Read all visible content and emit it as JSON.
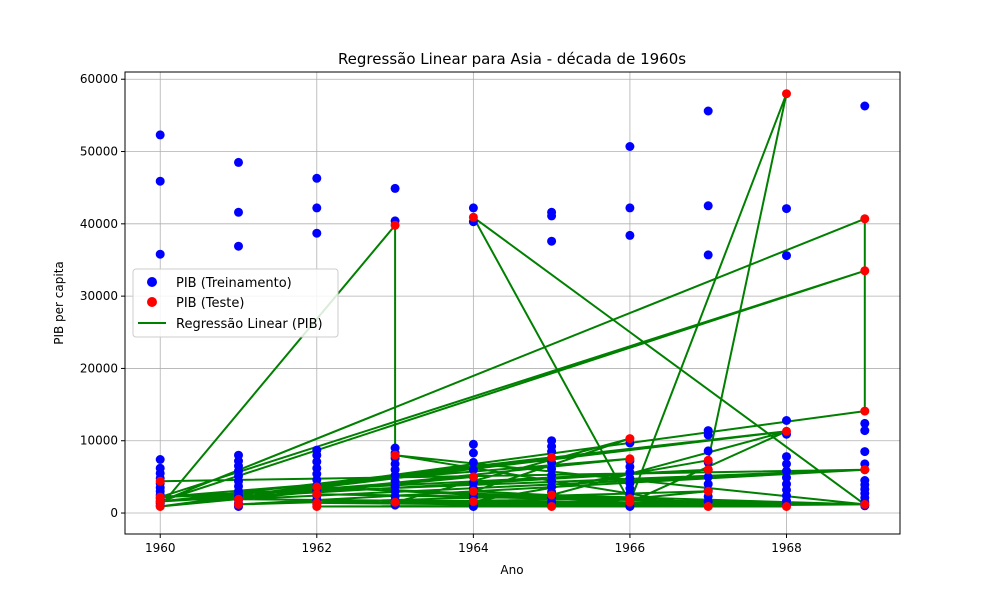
{
  "chart_data": {
    "type": "scatter",
    "title": "Regressão Linear para Asia - década de 1960s",
    "xlabel": "Ano",
    "ylabel": "PIB per capita",
    "xlim": [
      1959.55,
      1969.45
    ],
    "ylim": [
      -2900,
      61000
    ],
    "xticks": [
      1960,
      1962,
      1964,
      1966,
      1968
    ],
    "yticks": [
      0,
      10000,
      20000,
      30000,
      40000,
      50000,
      60000
    ],
    "grid": true,
    "legend_position": "center-left",
    "colors": {
      "train": "#0000ff",
      "test": "#ff0000",
      "regression": "#008000"
    },
    "series": [
      {
        "name": "PIB (Treinamento)",
        "kind": "scatter",
        "color": "#0000ff",
        "points": [
          [
            1960,
            52300
          ],
          [
            1960,
            45900
          ],
          [
            1960,
            35800
          ],
          [
            1960,
            7400
          ],
          [
            1960,
            6200
          ],
          [
            1960,
            5500
          ],
          [
            1960,
            4800
          ],
          [
            1960,
            4100
          ],
          [
            1960,
            3500
          ],
          [
            1960,
            3000
          ],
          [
            1960,
            2500
          ],
          [
            1960,
            2000
          ],
          [
            1960,
            1600
          ],
          [
            1960,
            1300
          ],
          [
            1960,
            1000
          ],
          [
            1961,
            48500
          ],
          [
            1961,
            41600
          ],
          [
            1961,
            36900
          ],
          [
            1961,
            8000
          ],
          [
            1961,
            7200
          ],
          [
            1961,
            6500
          ],
          [
            1961,
            5800
          ],
          [
            1961,
            5100
          ],
          [
            1961,
            4400
          ],
          [
            1961,
            3700
          ],
          [
            1961,
            3000
          ],
          [
            1961,
            2400
          ],
          [
            1961,
            1800
          ],
          [
            1961,
            1300
          ],
          [
            1961,
            900
          ],
          [
            1962,
            46300
          ],
          [
            1962,
            42200
          ],
          [
            1962,
            38700
          ],
          [
            1962,
            8700
          ],
          [
            1962,
            8000
          ],
          [
            1962,
            7100
          ],
          [
            1962,
            6200
          ],
          [
            1962,
            5400
          ],
          [
            1962,
            4600
          ],
          [
            1962,
            3800
          ],
          [
            1962,
            3100
          ],
          [
            1962,
            2400
          ],
          [
            1962,
            1800
          ],
          [
            1962,
            1200
          ],
          [
            1963,
            44900
          ],
          [
            1963,
            40400
          ],
          [
            1963,
            9000
          ],
          [
            1963,
            8300
          ],
          [
            1963,
            7600
          ],
          [
            1963,
            6800
          ],
          [
            1963,
            6000
          ],
          [
            1963,
            5200
          ],
          [
            1963,
            4400
          ],
          [
            1963,
            3700
          ],
          [
            1963,
            3000
          ],
          [
            1963,
            2300
          ],
          [
            1963,
            1700
          ],
          [
            1963,
            1100
          ],
          [
            1964,
            42200
          ],
          [
            1964,
            40300
          ],
          [
            1964,
            9500
          ],
          [
            1964,
            8300
          ],
          [
            1964,
            7000
          ],
          [
            1964,
            6000
          ],
          [
            1964,
            5000
          ],
          [
            1964,
            4200
          ],
          [
            1964,
            3400
          ],
          [
            1964,
            2700
          ],
          [
            1964,
            2100
          ],
          [
            1964,
            1500
          ],
          [
            1964,
            900
          ],
          [
            1965,
            41600
          ],
          [
            1965,
            41100
          ],
          [
            1965,
            37600
          ],
          [
            1965,
            10000
          ],
          [
            1965,
            9200
          ],
          [
            1965,
            8500
          ],
          [
            1965,
            7000
          ],
          [
            1965,
            6100
          ],
          [
            1965,
            5200
          ],
          [
            1965,
            4400
          ],
          [
            1965,
            3600
          ],
          [
            1965,
            2900
          ],
          [
            1965,
            2200
          ],
          [
            1965,
            1500
          ],
          [
            1965,
            1000
          ],
          [
            1966,
            50700
          ],
          [
            1966,
            42200
          ],
          [
            1966,
            38400
          ],
          [
            1966,
            9700
          ],
          [
            1966,
            7200
          ],
          [
            1966,
            6400
          ],
          [
            1966,
            5600
          ],
          [
            1966,
            4800
          ],
          [
            1966,
            4100
          ],
          [
            1966,
            3400
          ],
          [
            1966,
            2700
          ],
          [
            1966,
            2000
          ],
          [
            1966,
            1400
          ],
          [
            1966,
            900
          ],
          [
            1967,
            55600
          ],
          [
            1967,
            42500
          ],
          [
            1967,
            35700
          ],
          [
            1967,
            11400
          ],
          [
            1967,
            10800
          ],
          [
            1967,
            8600
          ],
          [
            1967,
            7000
          ],
          [
            1967,
            6000
          ],
          [
            1967,
            5000
          ],
          [
            1967,
            4000
          ],
          [
            1967,
            3100
          ],
          [
            1967,
            2300
          ],
          [
            1967,
            1600
          ],
          [
            1968,
            42100
          ],
          [
            1968,
            35600
          ],
          [
            1968,
            12800
          ],
          [
            1968,
            10900
          ],
          [
            1968,
            7800
          ],
          [
            1968,
            6800
          ],
          [
            1968,
            5800
          ],
          [
            1968,
            4900
          ],
          [
            1968,
            4000
          ],
          [
            1968,
            3200
          ],
          [
            1968,
            2400
          ],
          [
            1968,
            1700
          ],
          [
            1968,
            1100
          ],
          [
            1969,
            56300
          ],
          [
            1969,
            12400
          ],
          [
            1969,
            11400
          ],
          [
            1969,
            8500
          ],
          [
            1969,
            6800
          ],
          [
            1969,
            6000
          ],
          [
            1969,
            4500
          ],
          [
            1969,
            3900
          ],
          [
            1969,
            3300
          ],
          [
            1969,
            2700
          ],
          [
            1969,
            2100
          ],
          [
            1969,
            1500
          ],
          [
            1969,
            1000
          ]
        ]
      },
      {
        "name": "PIB (Teste)",
        "kind": "scatter",
        "color": "#ff0000",
        "points": [
          [
            1960,
            4400
          ],
          [
            1960,
            2200
          ],
          [
            1960,
            1600
          ],
          [
            1960,
            900
          ],
          [
            1961,
            1900
          ],
          [
            1961,
            1200
          ],
          [
            1962,
            3600
          ],
          [
            1962,
            2600
          ],
          [
            1962,
            1400
          ],
          [
            1962,
            900
          ],
          [
            1963,
            39800
          ],
          [
            1963,
            8000
          ],
          [
            1963,
            1500
          ],
          [
            1964,
            40900
          ],
          [
            1964,
            5000
          ],
          [
            1964,
            3000
          ],
          [
            1964,
            1600
          ],
          [
            1965,
            7700
          ],
          [
            1965,
            2500
          ],
          [
            1965,
            900
          ],
          [
            1966,
            10300
          ],
          [
            1966,
            7500
          ],
          [
            1966,
            2000
          ],
          [
            1966,
            1500
          ],
          [
            1967,
            7300
          ],
          [
            1967,
            6000
          ],
          [
            1967,
            3000
          ],
          [
            1967,
            900
          ],
          [
            1968,
            58000
          ],
          [
            1968,
            11300
          ],
          [
            1968,
            900
          ],
          [
            1969,
            40700
          ],
          [
            1969,
            33500
          ],
          [
            1969,
            14100
          ],
          [
            1969,
            6000
          ],
          [
            1969,
            1200
          ]
        ]
      },
      {
        "name": "Regressão Linear (PIB)",
        "kind": "line",
        "color": "#008000",
        "points": [
          [
            1960,
            4400
          ],
          [
            1969,
            6000
          ],
          [
            1960,
            2200
          ],
          [
            1969,
            33500
          ],
          [
            1960,
            1600
          ],
          [
            1969,
            40700
          ],
          [
            1969,
            14100
          ],
          [
            1960,
            900
          ],
          [
            1968,
            11300
          ],
          [
            1960,
            1600
          ],
          [
            1967,
            6000
          ],
          [
            1960,
            2200
          ],
          [
            1966,
            7500
          ],
          [
            1960,
            900
          ],
          [
            1965,
            7700
          ],
          [
            1960,
            1600
          ],
          [
            1964,
            5000
          ],
          [
            1960,
            900
          ],
          [
            1963,
            39800
          ],
          [
            1963,
            8000
          ],
          [
            1969,
            1200
          ],
          [
            1963,
            1500
          ],
          [
            1968,
            900
          ],
          [
            1962,
            3600
          ],
          [
            1967,
            900
          ],
          [
            1962,
            1400
          ],
          [
            1966,
            2000
          ],
          [
            1962,
            2600
          ],
          [
            1969,
            1200
          ],
          [
            1964,
            40900
          ],
          [
            1966,
            1500
          ],
          [
            1964,
            1600
          ],
          [
            1969,
            1200
          ],
          [
            1963,
            8000
          ],
          [
            1967,
            900
          ],
          [
            1963,
            1500
          ],
          [
            1966,
            10300
          ],
          [
            1964,
            3000
          ],
          [
            1968,
            900
          ],
          [
            1962,
            900
          ],
          [
            1969,
            1200
          ],
          [
            1961,
            1900
          ],
          [
            1969,
            6000
          ],
          [
            1961,
            1200
          ],
          [
            1967,
            3000
          ],
          [
            1965,
            900
          ],
          [
            1969,
            1200
          ],
          [
            1965,
            2500
          ],
          [
            1968,
            11300
          ],
          [
            1966,
            1500
          ],
          [
            1968,
            58000
          ],
          [
            1967,
            7300
          ],
          [
            1964,
            1600
          ],
          [
            1968,
            900
          ]
        ]
      }
    ]
  }
}
